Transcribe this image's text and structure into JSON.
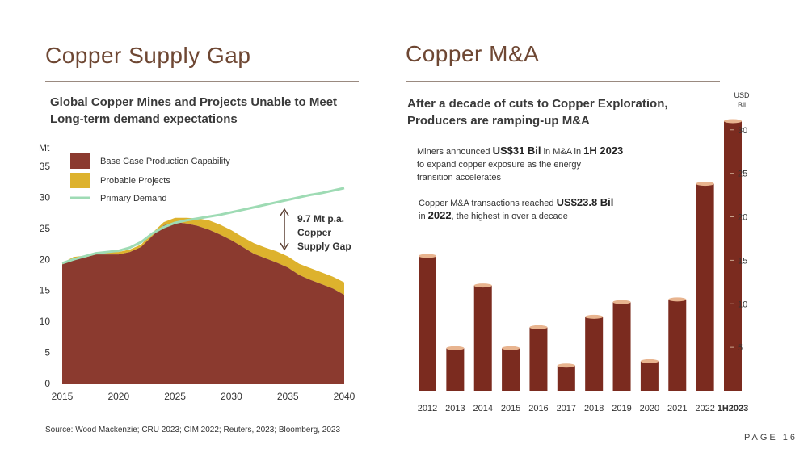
{
  "left_panel": {
    "title": "Copper Supply Gap",
    "subtitle": "Global Copper Mines and Projects Unable to Meet Long-term demand expectations",
    "annotation_lines": [
      "9.7 Mt p.a.",
      "Copper",
      "Supply Gap"
    ]
  },
  "right_panel": {
    "title": "Copper M&A",
    "subtitle": "After a decade of cuts to Copper Exploration, Producers are ramping-up M&A",
    "note1": {
      "parts": [
        {
          "text": "Miners announced ",
          "bold": false
        },
        {
          "text": "US$31 Bil",
          "bold": true
        },
        {
          "text": " in M&A in ",
          "bold": false
        },
        {
          "text": "1H 2023",
          "bold": true
        }
      ],
      "line2": "to expand copper exposure as the energy",
      "line3": "transition accelerates"
    },
    "note2": {
      "parts": [
        {
          "text": "Copper M&A transactions reached ",
          "bold": false
        },
        {
          "text": "US$23.8 Bil",
          "bold": true
        }
      ],
      "line2_parts": [
        {
          "text": "in ",
          "bold": false
        },
        {
          "text": "2022",
          "bold": true
        },
        {
          "text": ", the highest in over a decade",
          "bold": false
        }
      ]
    }
  },
  "source": "Source: Wood Mackenzie; CRU 2023; CIM 2022; Reuters, 2023; Bloomberg, 2023",
  "page_label": "PAGE 16",
  "colors": {
    "base": "#8b3a2f",
    "probable": "#ddb22d",
    "demand": "#9edbb4",
    "bar": "#7b2b1f",
    "bar_cap": "#e8b48f"
  },
  "chart_data": [
    {
      "type": "area",
      "ylabel": "Mt",
      "xlim": [
        2015,
        2040
      ],
      "ylim": [
        0,
        35
      ],
      "x_ticks": [
        2015,
        2020,
        2025,
        2030,
        2035,
        2040
      ],
      "y_ticks": [
        0,
        5,
        10,
        15,
        20,
        25,
        30,
        35
      ],
      "x": [
        2015,
        2016,
        2017,
        2018,
        2019,
        2020,
        2021,
        2022,
        2023,
        2024,
        2025,
        2026,
        2027,
        2028,
        2029,
        2030,
        2031,
        2032,
        2033,
        2034,
        2035,
        2036,
        2037,
        2038,
        2039,
        2040
      ],
      "legend": [
        "Base Case Production Capability",
        "Probable Projects",
        "Primary Demand"
      ],
      "series": [
        {
          "name": "Base Case Production Capability",
          "kind": "area",
          "values": [
            19.2,
            20.2,
            20.3,
            20.8,
            20.8,
            20.8,
            21.2,
            22.0,
            23.8,
            25.5,
            26.0,
            25.8,
            25.4,
            24.8,
            24.0,
            23.1,
            22.0,
            20.9,
            20.2,
            19.5,
            18.7,
            17.5,
            16.7,
            16.0,
            15.3,
            14.3
          ]
        },
        {
          "name": "Probable Projects",
          "kind": "stacked-area",
          "values": [
            0.2,
            0.2,
            0.3,
            0.3,
            0.4,
            0.4,
            0.4,
            0.4,
            0.5,
            0.5,
            0.7,
            0.9,
            1.2,
            1.5,
            1.6,
            1.6,
            1.6,
            1.7,
            1.7,
            1.8,
            1.8,
            1.8,
            1.9,
            1.9,
            1.9,
            2.0
          ]
        },
        {
          "name": "Primary Demand",
          "kind": "line",
          "values": [
            19.4,
            20.0,
            20.5,
            21.0,
            21.2,
            21.4,
            21.9,
            22.8,
            24.2,
            25.2,
            25.9,
            26.3,
            26.6,
            26.9,
            27.2,
            27.6,
            28.0,
            28.4,
            28.8,
            29.2,
            29.6,
            30.0,
            30.4,
            30.7,
            31.1,
            31.5
          ]
        }
      ]
    },
    {
      "type": "bar",
      "ylabel": "USD Bil",
      "categories": [
        "2012",
        "2013",
        "2014",
        "2015",
        "2016",
        "2017",
        "2018",
        "2019",
        "2020",
        "2021",
        "2022",
        "1H2023"
      ],
      "values": [
        15.5,
        4.9,
        12.1,
        4.9,
        7.3,
        2.9,
        8.5,
        10.2,
        3.4,
        10.5,
        23.8,
        31.0
      ],
      "y_ticks": [
        5,
        10,
        15,
        20,
        25,
        30
      ],
      "ylim": [
        0,
        31
      ]
    }
  ]
}
